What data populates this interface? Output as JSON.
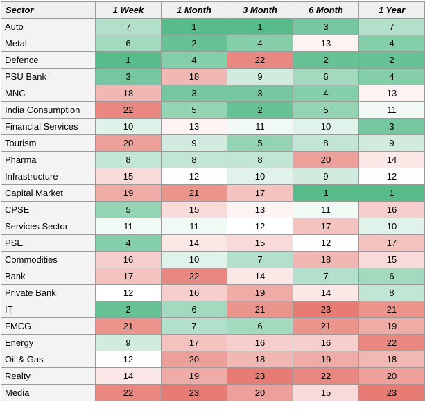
{
  "chart_data": {
    "type": "heatmap",
    "title": "",
    "corner_label": "Sector",
    "columns": [
      "1 Week",
      "1 Month",
      "3 Month",
      "6 Month",
      "1 Year"
    ],
    "rows": [
      {
        "sector": "Auto",
        "values": [
          7,
          1,
          1,
          3,
          7
        ]
      },
      {
        "sector": "Metal",
        "values": [
          6,
          2,
          4,
          13,
          4
        ]
      },
      {
        "sector": "Defence",
        "values": [
          1,
          4,
          22,
          2,
          2
        ]
      },
      {
        "sector": "PSU Bank",
        "values": [
          3,
          18,
          9,
          6,
          4
        ]
      },
      {
        "sector": "MNC",
        "values": [
          18,
          3,
          3,
          4,
          13
        ]
      },
      {
        "sector": "India Consumption",
        "values": [
          22,
          5,
          2,
          5,
          11
        ]
      },
      {
        "sector": "Financial Services",
        "values": [
          10,
          13,
          11,
          10,
          3
        ]
      },
      {
        "sector": "Tourism",
        "values": [
          20,
          9,
          5,
          8,
          9
        ]
      },
      {
        "sector": "Pharma",
        "values": [
          8,
          8,
          8,
          20,
          14
        ]
      },
      {
        "sector": "Infrastructure",
        "values": [
          15,
          12,
          10,
          9,
          12
        ]
      },
      {
        "sector": "Capital Market",
        "values": [
          19,
          21,
          17,
          1,
          1
        ]
      },
      {
        "sector": "CPSE",
        "values": [
          5,
          15,
          13,
          11,
          16
        ]
      },
      {
        "sector": "Services Sector",
        "values": [
          11,
          11,
          12,
          17,
          10
        ]
      },
      {
        "sector": "PSE",
        "values": [
          4,
          14,
          15,
          12,
          17
        ]
      },
      {
        "sector": "Commodities",
        "values": [
          16,
          10,
          7,
          18,
          15
        ]
      },
      {
        "sector": "Bank",
        "values": [
          17,
          22,
          14,
          7,
          6
        ]
      },
      {
        "sector": "Private Bank",
        "values": [
          12,
          16,
          19,
          14,
          8
        ]
      },
      {
        "sector": "IT",
        "values": [
          2,
          6,
          21,
          23,
          21
        ]
      },
      {
        "sector": "FMCG",
        "values": [
          21,
          7,
          6,
          21,
          19
        ]
      },
      {
        "sector": "Energy",
        "values": [
          9,
          17,
          16,
          16,
          22
        ]
      },
      {
        "sector": "Oil & Gas",
        "values": [
          12,
          20,
          18,
          19,
          18
        ]
      },
      {
        "sector": "Realty",
        "values": [
          14,
          19,
          23,
          22,
          20
        ]
      },
      {
        "sector": "Media",
        "values": [
          22,
          23,
          20,
          15,
          23
        ]
      }
    ],
    "value_range": [
      1,
      23
    ],
    "color_scale": {
      "best": "#57bb8a",
      "mid": "#ffffff",
      "worst": "#e67c73",
      "midpoint": 12
    }
  }
}
